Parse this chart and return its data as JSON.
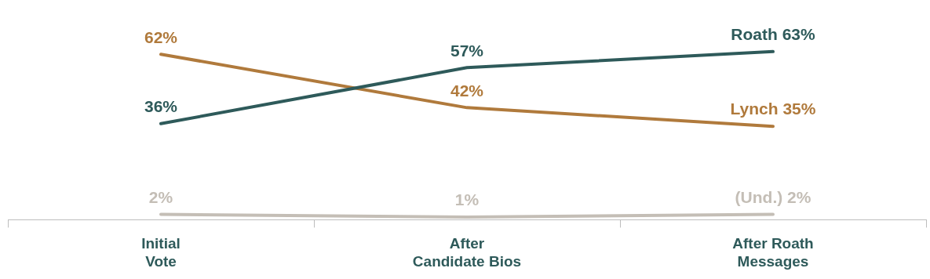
{
  "chart_data": {
    "type": "line",
    "categories": [
      "Initial\nVote",
      "After\nCandidate Bios",
      "After Roath\nMessages"
    ],
    "series": [
      {
        "color": "#2e5a5a",
        "values": [
          36,
          57,
          63
        ],
        "value_labels": [
          "36%",
          "57%",
          "Roath 63%"
        ]
      },
      {
        "color": "#b07a3c",
        "values": [
          62,
          42,
          35
        ],
        "value_labels": [
          "62%",
          "42%",
          "Lynch 35%"
        ]
      },
      {
        "color": "#c4beb6",
        "values": [
          2,
          1,
          2
        ],
        "value_labels": [
          "2%",
          "1%",
          "(Und.) 2%"
        ]
      }
    ],
    "tick_labels": "x",
    "grid": false,
    "legend": false,
    "marker": "none",
    "line_style": "solid"
  }
}
